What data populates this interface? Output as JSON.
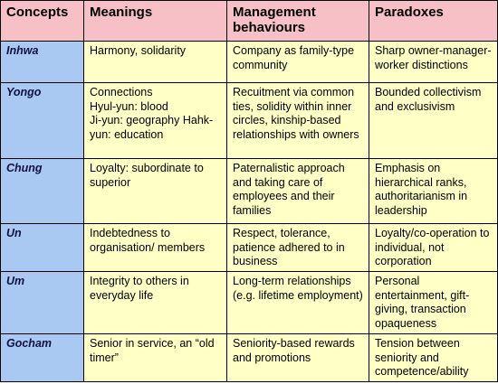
{
  "table": {
    "header": [
      "Concepts",
      "Meanings",
      "Management behaviours",
      "Paradoxes"
    ],
    "rows": [
      [
        "Inhwa",
        "Harmony, solidarity",
        "Company as family-type community",
        "Sharp owner-manager-worker distinctions"
      ],
      [
        "Yongo",
        [
          "Connections",
          "Hyul-yun: blood",
          "Ji-yun: geography Hahk-yun: education"
        ],
        "Recuitment via common ties, solidity within inner circles, kinship-based relationships with owners",
        "Bounded collectivism and exclusivism"
      ],
      [
        "Chung",
        "Loyalty: subordinate to superior",
        "Paternalistic approach and taking care of employees and their families",
        "Emphasis on hierarchical ranks, authoritarianism in leadership"
      ],
      [
        "Un",
        "Indebtedness to organisation/ members",
        "Respect, tolerance, patience adhered to in business",
        "Loyalty/co-operation to individual, not corporation"
      ],
      [
        "Um",
        "Integrity to others in everyday life",
        "Long-term relationships (e.g. lifetime employment)",
        "Personal entertainment, gift-giving, transaction opaqueness"
      ],
      [
        "Gocham",
        "Senior in service, an “old timer”",
        "Seniority-based rewards and promotions",
        "Tension between seniority and competence/ability"
      ]
    ]
  }
}
